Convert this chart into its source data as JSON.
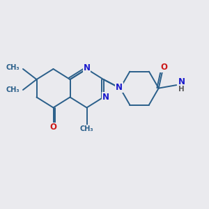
{
  "background_color": "#eaeaee",
  "bond_color": "#2a5f8a",
  "atom_colors": {
    "N": "#1a1acc",
    "O": "#cc1a1a",
    "C": "#2a5f8a",
    "H": "#5a5a5a"
  },
  "figsize": [
    3.0,
    3.0
  ],
  "dpi": 100,
  "xlim": [
    0,
    10
  ],
  "ylim": [
    0,
    10
  ]
}
